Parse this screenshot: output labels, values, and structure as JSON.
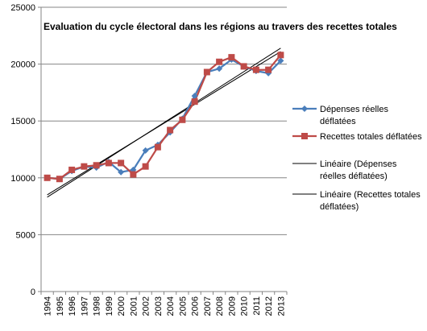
{
  "chart_data": {
    "type": "line",
    "title": "Evaluation du cycle électoral dans les régions au travers des recettes totales",
    "xlabel": "",
    "ylabel": "",
    "ylim": [
      0,
      25000
    ],
    "yticks": [
      0,
      5000,
      10000,
      15000,
      20000,
      25000
    ],
    "grid": "horizontal",
    "legend_position": "right",
    "x": [
      "1994",
      "1995",
      "1996",
      "1997",
      "1998",
      "1999",
      "2000",
      "2001",
      "2002",
      "2003",
      "2004",
      "2005",
      "2006",
      "2007",
      "2008",
      "2009",
      "2010",
      "2011",
      "2012",
      "2013"
    ],
    "series": [
      {
        "name": "Dépenses réelles déflatées",
        "color": "#4a7ebb",
        "marker": "diamond",
        "values": [
          10000,
          9900,
          10600,
          11000,
          10900,
          11400,
          10500,
          10700,
          12400,
          12900,
          14000,
          15200,
          17200,
          19300,
          19600,
          20400,
          19800,
          19400,
          19200,
          20300
        ]
      },
      {
        "name": "Recettes totales déflatées",
        "color": "#be4b48",
        "marker": "square",
        "values": [
          10000,
          9900,
          10700,
          11000,
          11100,
          11300,
          11300,
          10300,
          11000,
          12700,
          14200,
          15100,
          16700,
          19300,
          20200,
          20600,
          19800,
          19500,
          19500,
          20800
        ]
      }
    ],
    "trendlines": [
      {
        "name": "Linéaire (Dépenses réelles déflatées)",
        "color": "#000000",
        "start": 8500,
        "end": 21100
      },
      {
        "name": "Linéaire (Recettes totales déflatées)",
        "color": "#000000",
        "start": 8300,
        "end": 21400
      }
    ]
  }
}
